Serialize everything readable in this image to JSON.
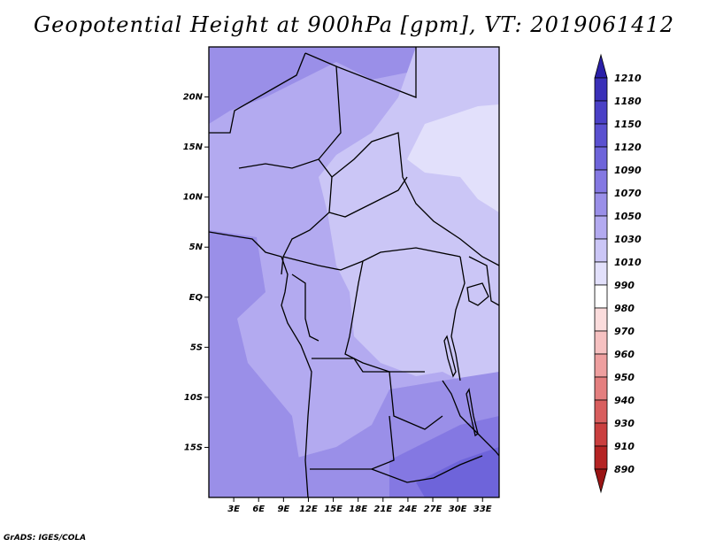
{
  "title": "Geopotential Height at 900hPa [gpm], VT: 2019061412",
  "credit": "GrADS: IGES/COLA",
  "map": {
    "variable": "Geopotential Height",
    "level": "900hPa",
    "units": "gpm",
    "valid_time": "2019061412",
    "lon_range": [
      0,
      35
    ],
    "lat_range": [
      -20,
      25
    ],
    "lat_ticks": [
      {
        "value": 20,
        "label": "20N"
      },
      {
        "value": 15,
        "label": "15N"
      },
      {
        "value": 10,
        "label": "10N"
      },
      {
        "value": 5,
        "label": "5N"
      },
      {
        "value": 0,
        "label": "EQ"
      },
      {
        "value": -5,
        "label": "5S"
      },
      {
        "value": -10,
        "label": "10S"
      },
      {
        "value": -15,
        "label": "15S"
      }
    ],
    "lon_ticks": [
      {
        "value": 3,
        "label": "3E"
      },
      {
        "value": 6,
        "label": "6E"
      },
      {
        "value": 9,
        "label": "9E"
      },
      {
        "value": 12,
        "label": "12E"
      },
      {
        "value": 15,
        "label": "15E"
      },
      {
        "value": 18,
        "label": "18E"
      },
      {
        "value": 21,
        "label": "21E"
      },
      {
        "value": 24,
        "label": "24E"
      },
      {
        "value": 27,
        "label": "27E"
      },
      {
        "value": 30,
        "label": "30E"
      },
      {
        "value": 33,
        "label": "33E"
      }
    ]
  },
  "colorbar": {
    "levels": [
      "1210",
      "1180",
      "1150",
      "1120",
      "1090",
      "1070",
      "1050",
      "1030",
      "1010",
      "990",
      "980",
      "970",
      "960",
      "950",
      "940",
      "930",
      "910",
      "890"
    ],
    "colors": [
      "#2a1fa8",
      "#3a30b8",
      "#4a40c6",
      "#5a50d0",
      "#6e64da",
      "#8478e2",
      "#9a8fe8",
      "#b3aaf0",
      "#cbc6f6",
      "#e2e0fb",
      "#ffffff",
      "#fbdcdc",
      "#f6c1c1",
      "#ee9f9f",
      "#e47f7f",
      "#d85e5e",
      "#ca3f3f",
      "#b52424",
      "#9a1414"
    ]
  }
}
